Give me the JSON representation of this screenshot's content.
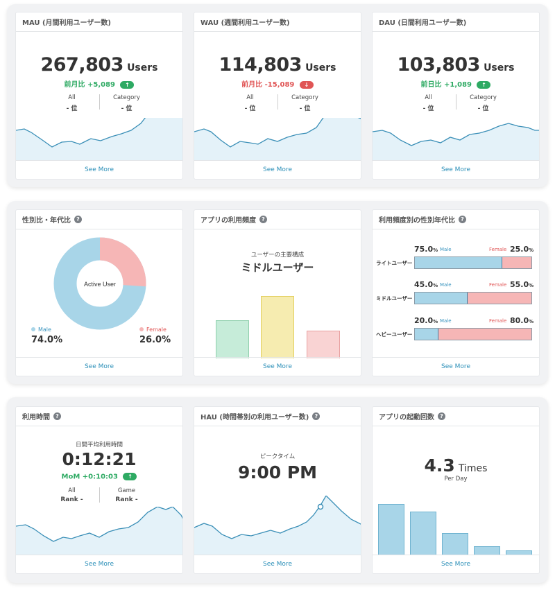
{
  "row1": {
    "mau": {
      "title": "MAU (月間利用ユーザー数)",
      "value": "267,803",
      "unit": "Users",
      "delta_text": "前月比 +5,089",
      "delta_arrow": "↑",
      "rank_all_label": "All",
      "rank_all_value": "- 位",
      "rank_cat_label": "Category",
      "rank_cat_value": "- 位",
      "footer": "See More"
    },
    "wau": {
      "title": "WAU (週間利用ユーザー数)",
      "value": "114,803",
      "unit": "Users",
      "delta_text": "前月比 -15,089",
      "delta_arrow": "↓",
      "rank_all_label": "All",
      "rank_all_value": "- 位",
      "rank_cat_label": "Category",
      "rank_cat_value": "- 位",
      "footer": "See More"
    },
    "dau": {
      "title": "DAU (日間利用ユーザー数)",
      "value": "103,803",
      "unit": "Users",
      "delta_text": "前日比 +1,089",
      "delta_arrow": "↑",
      "rank_all_label": "All",
      "rank_all_value": "- 位",
      "rank_cat_label": "Category",
      "rank_cat_value": "- 位",
      "footer": "See More"
    }
  },
  "row2": {
    "gender": {
      "title": "性別比・年代比",
      "center": "Active User",
      "male_label": "Male",
      "male_pct": "74.0%",
      "female_label": "Female",
      "female_pct": "26.0%",
      "male_share": 0.74,
      "footer": "See More"
    },
    "frequency": {
      "title": "アプリの利用頻度",
      "subtitle": "ユーザーの主要構成",
      "main": "ミドルユーザー",
      "bar_levels": [
        0.55,
        0.9,
        0.4
      ],
      "bar_colors": [
        "#c6ecd9",
        "#f6ecb0",
        "#f9d3d3"
      ],
      "bar_borders": [
        "#8fcfad",
        "#e3cf5e",
        "#e8a0a0"
      ],
      "footer": "See More"
    },
    "freq_gender": {
      "title": "利用頻度別の性別年代比",
      "rows": [
        {
          "label": "ライトユーザー",
          "male_num": "75.0",
          "female_num": "25.0",
          "male_share": 0.75
        },
        {
          "label": "ミドルユーザー",
          "male_num": "45.0",
          "female_num": "55.0",
          "male_share": 0.45
        },
        {
          "label": "ヘビーユーザー",
          "male_num": "20.0",
          "female_num": "80.0",
          "male_share": 0.2
        }
      ],
      "pct_sign": "%",
      "male_label": "Male",
      "female_label": "Female",
      "footer": "See More"
    }
  },
  "row3": {
    "usage_time": {
      "title": "利用時間",
      "subtitle": "日間平均利用時間",
      "value": "0:12:21",
      "delta_text": "MoM +0:10:03",
      "delta_arrow": "↑",
      "rank_all_label": "All",
      "rank_all_value": "Rank -",
      "rank_game_label": "Game",
      "rank_game_value": "Rank -",
      "footer": "See More"
    },
    "hau": {
      "title": "HAU (時間帯別の利用ユーザー数)",
      "subtitle": "ピークタイム",
      "value": "9:00 PM",
      "footer": "See More"
    },
    "launch": {
      "title": "アプリの起動回数",
      "value": "4.3",
      "unit": "Times",
      "sub": "Per Day",
      "bar_levels": [
        1.0,
        0.85,
        0.43,
        0.18,
        0.1
      ],
      "footer": "See More"
    }
  },
  "colors": {
    "line": "#3a8fb7",
    "area": "#e4f2f9",
    "male": "#a8d5e8",
    "female": "#f6b6b6",
    "up": "#2eaa63",
    "down": "#e05555",
    "link": "#2b8fb8"
  }
}
